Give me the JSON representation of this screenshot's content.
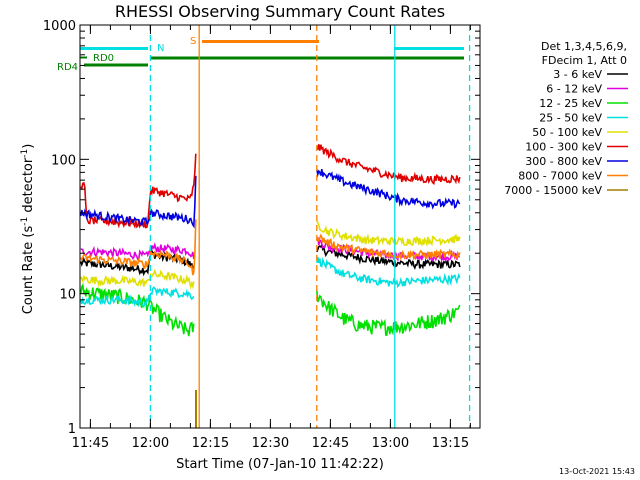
{
  "chart_data": {
    "type": "line",
    "title": "RHESSI Observing Summary Count Rates",
    "xlabel": "Start Time (07-Jan-10 11:42:22)",
    "ylabel_parts": [
      "Count Rate (s",
      "-1",
      " detector",
      "-1",
      ")"
    ],
    "ylabel": "Count Rate (s-1 detector-1)",
    "x_unit": "minutes after 11:42:22",
    "xlim": [
      0,
      100
    ],
    "ylim": [
      1,
      1000
    ],
    "y_scale": "log",
    "x_ticks": [
      {
        "value": 2.6,
        "label": "11:45"
      },
      {
        "value": 17.6,
        "label": "12:00"
      },
      {
        "value": 32.6,
        "label": "12:15"
      },
      {
        "value": 47.6,
        "label": "12:30"
      },
      {
        "value": 62.6,
        "label": "12:45"
      },
      {
        "value": 77.6,
        "label": "13:00"
      },
      {
        "value": 92.6,
        "label": "13:15"
      }
    ],
    "y_ticks": [
      {
        "value": 1,
        "label": "1"
      },
      {
        "value": 10,
        "label": "10"
      },
      {
        "value": 100,
        "label": "100"
      },
      {
        "value": 1000,
        "label": "1000"
      }
    ],
    "legend_header": [
      "Det 1,3,4,5,6,9,",
      "FDecim 1, Att 0"
    ],
    "legend_position": "right",
    "series": [
      {
        "name": "3 - 6 keV",
        "color": "#000000",
        "segments": [
          [
            [
              0.2,
              17
            ],
            [
              1.5,
              16.8
            ],
            [
              5,
              16.5
            ],
            [
              10,
              15.8
            ],
            [
              17,
              15
            ],
            [
              17.6,
              20
            ],
            [
              20,
              19
            ],
            [
              25,
              18
            ],
            [
              27,
              17
            ],
            [
              28.6,
              15.5
            ]
          ],
          [
            [
              59.2,
              22
            ],
            [
              62,
              20.5
            ],
            [
              68,
              19
            ],
            [
              75,
              17.5
            ],
            [
              85,
              16.5
            ],
            [
              95,
              16.5
            ]
          ]
        ]
      },
      {
        "name": "6 - 12 keV",
        "color": "#e000e0",
        "segments": [
          [
            [
              0.2,
              20.5
            ],
            [
              5,
              20.5
            ],
            [
              10,
              20
            ],
            [
              17,
              19
            ],
            [
              17.6,
              22
            ],
            [
              22,
              21.5
            ],
            [
              27,
              21
            ],
            [
              28.6,
              19
            ]
          ],
          [
            [
              59.2,
              25
            ],
            [
              62,
              22.5
            ],
            [
              68,
              21
            ],
            [
              75,
              19.5
            ],
            [
              85,
              19
            ],
            [
              95,
              19
            ]
          ]
        ]
      },
      {
        "name": "12 - 25 keV",
        "color": "#00e000",
        "segments": [
          [
            [
              0.2,
              10.5
            ],
            [
              5,
              10
            ],
            [
              10,
              9.5
            ],
            [
              17,
              8.5
            ],
            [
              17.6,
              8
            ],
            [
              20,
              7
            ],
            [
              23,
              6
            ],
            [
              27,
              5.3
            ],
            [
              28.6,
              5.6
            ]
          ],
          [
            [
              59.2,
              10
            ],
            [
              62,
              8
            ],
            [
              66,
              6.5
            ],
            [
              70,
              5.8
            ],
            [
              75,
              5.6
            ],
            [
              82,
              5.8
            ],
            [
              90,
              6.5
            ],
            [
              95,
              7.5
            ]
          ]
        ]
      },
      {
        "name": "25 - 50 keV",
        "color": "#00e0e0",
        "segments": [
          [
            [
              0.2,
              9
            ],
            [
              5,
              9
            ],
            [
              10,
              9
            ],
            [
              17,
              8.5
            ],
            [
              17.6,
              10.5
            ],
            [
              22,
              10.3
            ],
            [
              27,
              10
            ],
            [
              28.6,
              9.5
            ]
          ],
          [
            [
              59.2,
              18
            ],
            [
              62,
              16
            ],
            [
              66,
              14
            ],
            [
              70,
              13
            ],
            [
              78,
              12
            ],
            [
              85,
              12.5
            ],
            [
              95,
              13
            ]
          ]
        ]
      },
      {
        "name": "50 - 100 keV",
        "color": "#e0e000",
        "segments": [
          [
            [
              0.2,
              13
            ],
            [
              5,
              12.5
            ],
            [
              10,
              12.5
            ],
            [
              17,
              12
            ],
            [
              17.6,
              14
            ],
            [
              22,
              13.5
            ],
            [
              27,
              12.5
            ],
            [
              28.6,
              11.5
            ]
          ],
          [
            [
              59.2,
              33
            ],
            [
              62,
              29
            ],
            [
              66,
              27
            ],
            [
              72,
              25
            ],
            [
              80,
              24.5
            ],
            [
              88,
              25
            ],
            [
              95,
              25.5
            ]
          ]
        ]
      },
      {
        "name": "100 - 300 keV",
        "color": "#e00000",
        "segments": [
          [
            [
              0.2,
              66
            ],
            [
              1.2,
              62
            ],
            [
              1.6,
              35
            ],
            [
              5,
              35
            ],
            [
              10,
              34
            ],
            [
              17,
              33
            ],
            [
              17.6,
              59
            ],
            [
              20,
              57
            ],
            [
              25,
              52
            ],
            [
              27.5,
              50
            ],
            [
              28.6,
              65
            ],
            [
              29,
              120
            ]
          ],
          [
            [
              59.2,
              125
            ],
            [
              62,
              112
            ],
            [
              66,
              97
            ],
            [
              70,
              88
            ],
            [
              75,
              80
            ],
            [
              80,
              73
            ],
            [
              88,
              71
            ],
            [
              95,
              72
            ]
          ]
        ]
      },
      {
        "name": "300 - 800 keV",
        "color": "#0000e0",
        "segments": [
          [
            [
              0.2,
              40
            ],
            [
              5,
              38
            ],
            [
              10,
              36
            ],
            [
              17,
              34
            ],
            [
              17.6,
              40
            ],
            [
              22,
              38
            ],
            [
              27,
              36
            ],
            [
              28.6,
              34
            ],
            [
              29,
              80
            ]
          ],
          [
            [
              59.2,
              84
            ],
            [
              62,
              76
            ],
            [
              66,
              68
            ],
            [
              70,
              62
            ],
            [
              75,
              56
            ],
            [
              80,
              50
            ],
            [
              88,
              47
            ],
            [
              95,
              47
            ]
          ]
        ]
      },
      {
        "name": "800 - 7000 keV",
        "color": "#ff8000",
        "segments": [
          [
            [
              0.2,
              18.5
            ],
            [
              5,
              18
            ],
            [
              10,
              17.5
            ],
            [
              17,
              16.5
            ],
            [
              17.6,
              20
            ],
            [
              22,
              19.5
            ],
            [
              27,
              17
            ],
            [
              28.6,
              14
            ],
            [
              29,
              40
            ]
          ],
          [
            [
              59.2,
              27
            ],
            [
              62,
              24
            ],
            [
              66,
              22
            ],
            [
              72,
              20.5
            ],
            [
              80,
              19.5
            ],
            [
              88,
              19.5
            ],
            [
              95,
              19.5
            ]
          ]
        ]
      },
      {
        "name": "7000 - 15000 keV",
        "color": "#a08000",
        "segments": []
      }
    ],
    "flags": [
      {
        "name": "RD4",
        "color": "#008000"
      },
      {
        "name": "RD0",
        "color": "#008000"
      },
      {
        "name": "N",
        "color": "#00e0e0"
      },
      {
        "name": "S",
        "color": "#ff8000"
      }
    ],
    "annotations": [
      {
        "kind": "solid-vline",
        "x": 29.8,
        "color": "#ff8000"
      },
      {
        "kind": "dashed-vline",
        "x": 17.6,
        "color": "#00e0e0"
      },
      {
        "kind": "dashed-vline",
        "x": 59.2,
        "color": "#ff8000"
      },
      {
        "kind": "solid-vline",
        "x": 78.7,
        "color": "#00e0e0"
      },
      {
        "kind": "dashed-vline",
        "x": 97.4,
        "color": "#00e0e0"
      }
    ],
    "footer": "13-Oct-2021 15:43"
  }
}
